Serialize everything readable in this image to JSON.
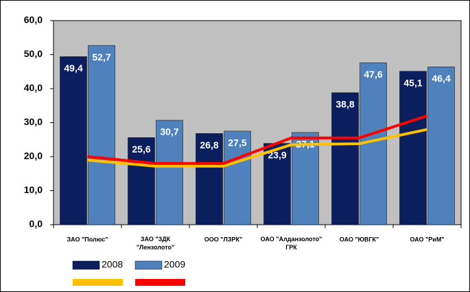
{
  "chart_data": {
    "type": "bar",
    "categories": [
      "ЗАО \"Полюс\"",
      "ЗАО \"ЗДК\n\"Лензолото\"",
      "ООО \"ЛЗРК\"",
      "ОАО \"Алданзолото\"\nГРК",
      "ОАО \"ЮВГК\"",
      "ОАО \"РиМ\""
    ],
    "series": [
      {
        "name": "2008",
        "color": "#0b1f5e",
        "values": [
          49.4,
          25.6,
          26.8,
          23.9,
          38.8,
          45.1
        ],
        "value_labels": [
          "49,4",
          "25,6",
          "26,8",
          "23,9",
          "38,8",
          "45,1"
        ]
      },
      {
        "name": "2009",
        "color": "#4f81bd",
        "values": [
          52.7,
          30.7,
          27.5,
          27.1,
          47.6,
          46.4
        ],
        "value_labels": [
          "52,7",
          "30,7",
          "27,5",
          "27,1",
          "47,6",
          "46,4"
        ]
      },
      {
        "type": "line",
        "color": "#ffc000",
        "values": [
          19,
          17.2,
          17.2,
          23.5,
          23.8,
          28
        ]
      },
      {
        "type": "line",
        "color": "#ff0000",
        "values": [
          20,
          18,
          18,
          25.5,
          25.5,
          32
        ]
      }
    ],
    "ylim": [
      0,
      60
    ],
    "yticks": [
      {
        "value": 0,
        "label": "0,0"
      },
      {
        "value": 10,
        "label": "10,0"
      },
      {
        "value": 20,
        "label": "20,0"
      },
      {
        "value": 30,
        "label": "30,0"
      },
      {
        "value": 40,
        "label": "40,0"
      },
      {
        "value": 50,
        "label": "50,0"
      },
      {
        "value": 60,
        "label": "60,0"
      }
    ],
    "grid": false,
    "legend": "bottom-left"
  }
}
